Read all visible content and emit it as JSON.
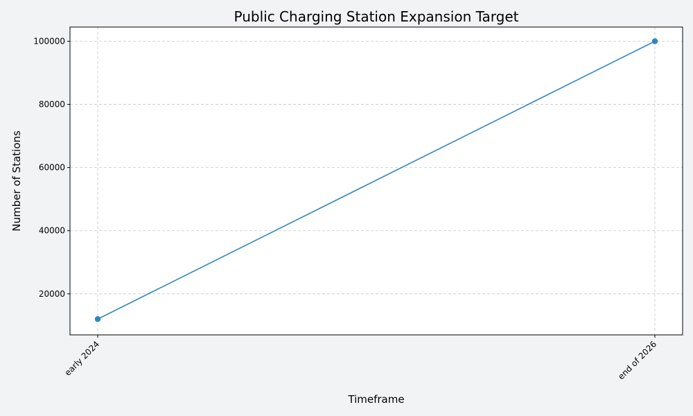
{
  "chart_data": {
    "type": "line",
    "title": "Public Charging Station Expansion Target",
    "xlabel": "Timeframe",
    "ylabel": "Number of Stations",
    "categories": [
      "early 2024",
      "end of 2026"
    ],
    "series": [
      {
        "values": [
          12000,
          100000
        ],
        "color": "#2e86c1",
        "marker": "circle"
      }
    ],
    "ylim": [
      7000,
      104500
    ],
    "yticks": [
      20000,
      40000,
      60000,
      80000,
      100000
    ],
    "grid": true,
    "legend": "none",
    "xtick_rotation": 45
  }
}
